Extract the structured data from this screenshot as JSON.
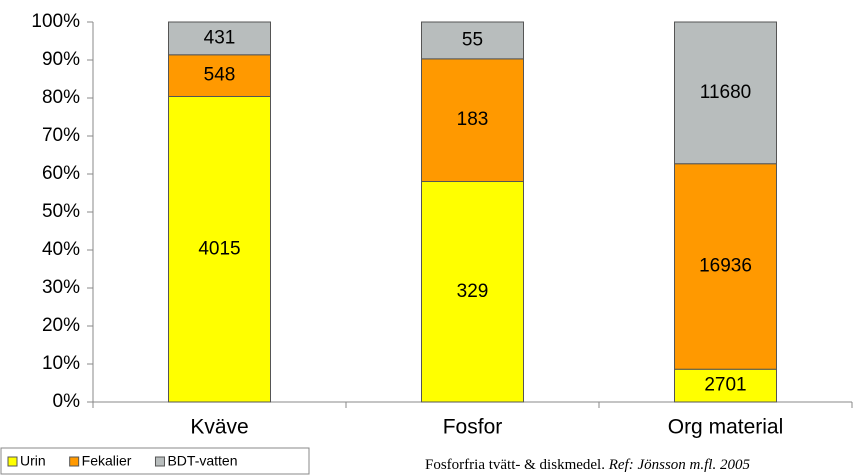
{
  "chart_data": {
    "type": "bar",
    "stack": "percent",
    "categories": [
      "Kväve",
      "Fosfor",
      "Org material"
    ],
    "series": [
      {
        "name": "Urin",
        "color": "#ffff00",
        "values": [
          4015,
          329,
          2701
        ]
      },
      {
        "name": "Fekalier",
        "color": "#ff9900",
        "values": [
          548,
          183,
          16936
        ]
      },
      {
        "name": "BDT-vatten",
        "color": "#b8bdbd",
        "values": [
          431,
          55,
          11680
        ]
      }
    ],
    "ylim": [
      0,
      100
    ],
    "yticks": [
      {
        "value": 0,
        "label": "0%"
      },
      {
        "value": 10,
        "label": "10%"
      },
      {
        "value": 20,
        "label": "20%"
      },
      {
        "value": 30,
        "label": "30%"
      },
      {
        "value": 40,
        "label": "40%"
      },
      {
        "value": 50,
        "label": "50%"
      },
      {
        "value": 60,
        "label": "60%"
      },
      {
        "value": 70,
        "label": "70%"
      },
      {
        "value": 80,
        "label": "80%"
      },
      {
        "value": 90,
        "label": "90%"
      },
      {
        "value": 100,
        "label": "100%"
      }
    ],
    "grid": false,
    "legend": "bottom-left",
    "note": "Fosforfria tvätt- & diskmedel.",
    "reference": "Ref: Jönsson m.fl. 2005"
  }
}
